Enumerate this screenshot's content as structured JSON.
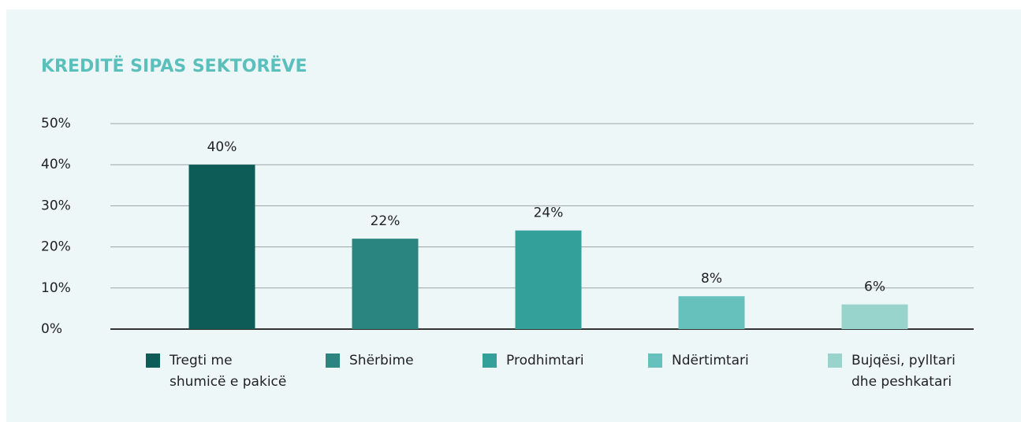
{
  "chart_data": {
    "type": "bar",
    "title": "KREDITË SIPAS SEKTORËVE",
    "categories": [
      "Tregti me\nshumicë e pakicë",
      "Shërbime",
      "Prodhimtari",
      "Ndërtimtari",
      "Bujqësi, pylltari\ndhe peshkatari"
    ],
    "values": [
      40,
      22,
      24,
      8,
      6
    ],
    "value_labels": [
      "40%",
      "22%",
      "24%",
      "8%",
      "6%"
    ],
    "colors": [
      "#0e5c57",
      "#2a8480",
      "#33a19a",
      "#66c1bd",
      "#98d3cc"
    ],
    "ylim": [
      0,
      50
    ],
    "yticks": [
      {
        "value": 0,
        "label": "0%"
      },
      {
        "value": 10,
        "label": "10%"
      },
      {
        "value": 20,
        "label": "20%"
      },
      {
        "value": 30,
        "label": "30%"
      },
      {
        "value": 40,
        "label": "40%"
      },
      {
        "value": 50,
        "label": "50%"
      }
    ],
    "grid": true,
    "legend": "bottom"
  }
}
